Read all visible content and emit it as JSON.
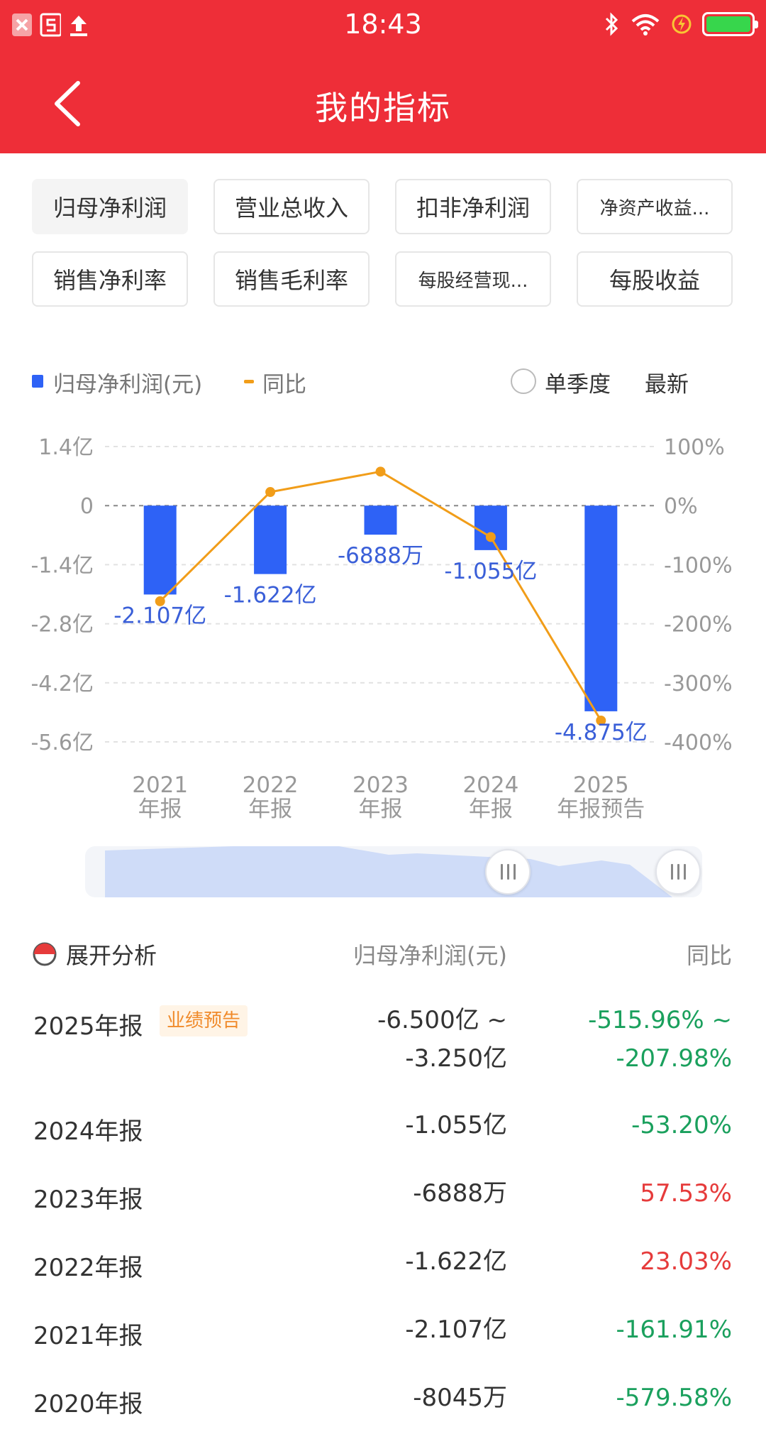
{
  "status_bar": {
    "time": "18:43"
  },
  "header": {
    "title": "我的指标"
  },
  "tabs": [
    {
      "label": "归母净利润",
      "active": true
    },
    {
      "label": "营业总收入"
    },
    {
      "label": "扣非净利润"
    },
    {
      "label": "净资产收益..."
    },
    {
      "label": "销售净利率"
    },
    {
      "label": "销售毛利率"
    },
    {
      "label": "每股经营现..."
    },
    {
      "label": "每股收益"
    }
  ],
  "legend": {
    "bar_label": "归母净利润(元)",
    "line_label": "同比",
    "single_quarter": "单季度",
    "latest": "最新"
  },
  "chart_data": {
    "type": "bar",
    "categories": [
      "2021\n年报",
      "2022\n年报",
      "2023\n年报",
      "2024\n年报",
      "2025\n年报预告"
    ],
    "series": [
      {
        "name": "归母净利润(元)",
        "type": "bar",
        "values": [
          -2.107,
          -1.622,
          -0.6888,
          -1.055,
          -4.875
        ],
        "unit": "亿"
      },
      {
        "name": "同比",
        "type": "line",
        "values": [
          -161.91,
          23.03,
          57.53,
          -53.2,
          -515.96
        ],
        "unit": "%"
      }
    ],
    "data_labels": [
      "-2.107亿",
      "-1.622亿",
      "-6888万",
      "-1.055亿",
      "-4.875亿"
    ],
    "y_left_ticks": [
      "1.4亿",
      "0",
      "-1.4亿",
      "-2.8亿",
      "-4.2亿",
      "-5.6亿"
    ],
    "y_right_ticks": [
      "100%",
      "0%",
      "-100%",
      "-200%",
      "-300%",
      "-400%"
    ],
    "ylim_left": [
      -5.6,
      1.4
    ],
    "ylim_right": [
      -400,
      100
    ],
    "grid": true,
    "colors": {
      "bar": "#2e62f6",
      "line": "#f19d19"
    }
  },
  "table": {
    "expand_label": "展开分析",
    "col_value": "归母净利润(元)",
    "col_yoy": "同比",
    "rows": [
      {
        "period": "2025年报",
        "tag": "业绩预告",
        "value_lines": [
          "-6.500亿 ~",
          "-3.250亿"
        ],
        "yoy_lines": [
          "-515.96% ~",
          "-207.98%"
        ],
        "yoy_color": "green"
      },
      {
        "period": "2024年报",
        "value_lines": [
          "-1.055亿"
        ],
        "yoy_lines": [
          "-53.20%"
        ],
        "yoy_color": "green"
      },
      {
        "period": "2023年报",
        "value_lines": [
          "-6888万"
        ],
        "yoy_lines": [
          "57.53%"
        ],
        "yoy_color": "red"
      },
      {
        "period": "2022年报",
        "value_lines": [
          "-1.622亿"
        ],
        "yoy_lines": [
          "23.03%"
        ],
        "yoy_color": "red"
      },
      {
        "period": "2021年报",
        "value_lines": [
          "-2.107亿"
        ],
        "yoy_lines": [
          "-161.91%"
        ],
        "yoy_color": "green"
      },
      {
        "period": "2020年报",
        "value_lines": [
          "-8045万"
        ],
        "yoy_lines": [
          "-579.58%"
        ],
        "yoy_color": "green"
      }
    ]
  }
}
